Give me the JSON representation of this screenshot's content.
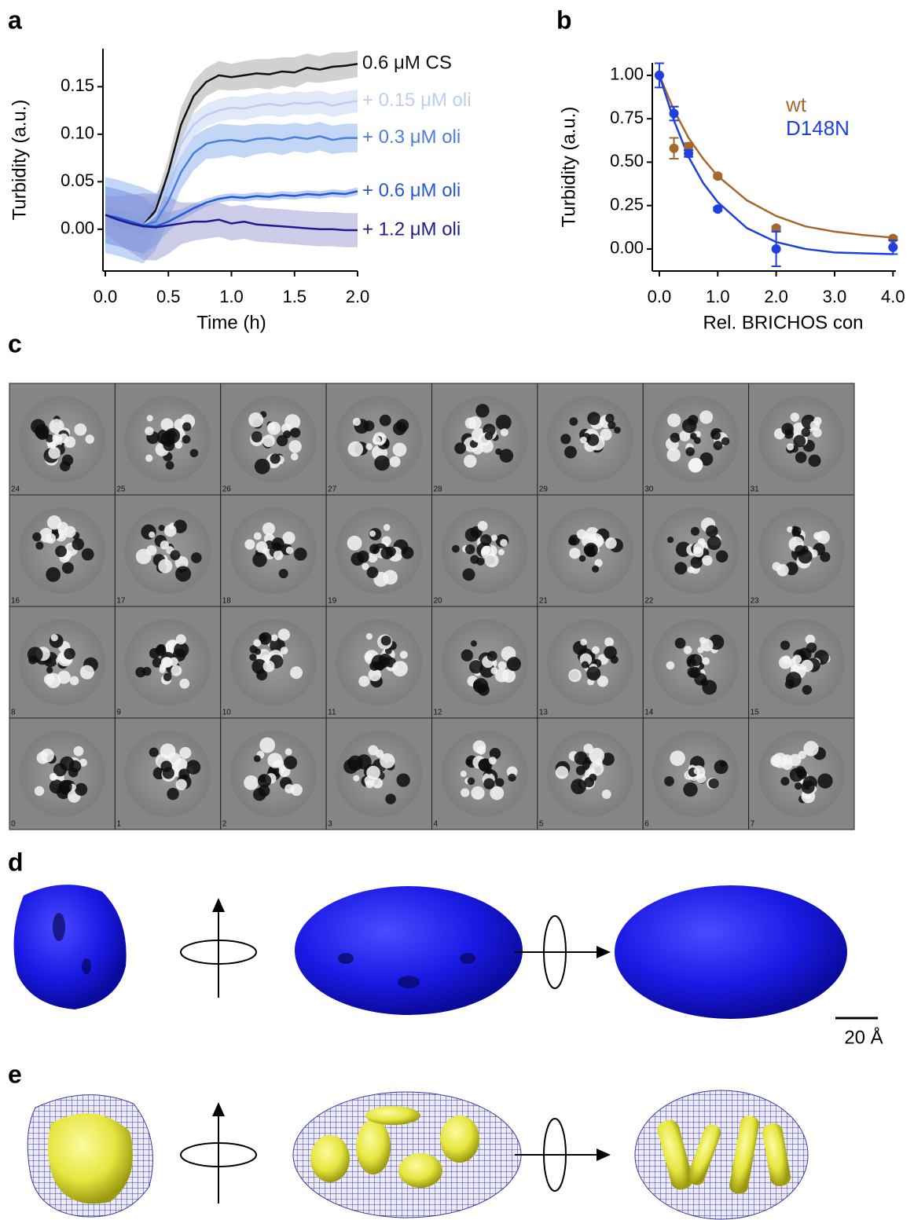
{
  "panel_labels": [
    "a",
    "b",
    "c",
    "d",
    "e"
  ],
  "chart_data": [
    {
      "type": "line",
      "x_label": "Time (h)",
      "y_label": "Turbidity (a.u.)",
      "x": [
        0,
        0.1,
        0.2,
        0.3,
        0.4,
        0.5,
        0.6,
        0.7,
        0.8,
        0.9,
        1.0,
        1.1,
        1.2,
        1.3,
        1.4,
        1.5,
        1.6,
        1.7,
        1.8,
        1.9,
        2.0
      ],
      "xlim": [
        0,
        2
      ],
      "ylim": [
        -0.044,
        0.19
      ],
      "xticks": [
        {
          "value": 0,
          "label": "0.0"
        },
        {
          "value": 0.5,
          "label": "0.5"
        },
        {
          "value": 1,
          "label": "1.0"
        },
        {
          "value": 1.5,
          "label": "1.5"
        },
        {
          "value": 2,
          "label": "2.0"
        }
      ],
      "yticks": [
        {
          "value": 0,
          "label": "0.00"
        },
        {
          "value": 0.05,
          "label": "0.05"
        },
        {
          "value": 0.1,
          "label": "0.10"
        },
        {
          "value": 0.15,
          "label": "0.15"
        }
      ],
      "series": [
        {
          "name": "0.6 μM CS",
          "color": "#111111",
          "band_color": "#9a9a9a",
          "values": [
            0.015,
            0.012,
            0.008,
            0.004,
            0.02,
            0.06,
            0.11,
            0.14,
            0.155,
            0.162,
            0.16,
            0.162,
            0.164,
            0.163,
            0.166,
            0.165,
            0.17,
            0.168,
            0.171,
            0.172,
            0.174
          ],
          "error": [
            0.01,
            0.01,
            0.01,
            0.01,
            0.012,
            0.015,
            0.018,
            0.016,
            0.015,
            0.015,
            0.014,
            0.015,
            0.015,
            0.016,
            0.015,
            0.016,
            0.015,
            0.014,
            0.015,
            0.014,
            0.014
          ]
        },
        {
          "name": "+ 0.15 μM oli",
          "color": "#bccdf0",
          "band_color": "#bccdf0",
          "values": [
            0.015,
            0.012,
            0.008,
            0.004,
            0.015,
            0.05,
            0.09,
            0.11,
            0.12,
            0.125,
            0.128,
            0.127,
            0.13,
            0.132,
            0.13,
            0.133,
            0.132,
            0.134,
            0.13,
            0.133,
            0.135
          ],
          "error": [
            0.03,
            0.03,
            0.03,
            0.03,
            0.02,
            0.015,
            0.012,
            0.012,
            0.012,
            0.012,
            0.012,
            0.012,
            0.012,
            0.012,
            0.012,
            0.012,
            0.012,
            0.012,
            0.012,
            0.012,
            0.012
          ]
        },
        {
          "name": "+ 0.3 μM oli",
          "color": "#4a7fe0",
          "band_color": "#7ba3ec",
          "values": [
            0.015,
            0.012,
            0.008,
            0.004,
            0.008,
            0.03,
            0.06,
            0.08,
            0.09,
            0.093,
            0.094,
            0.092,
            0.095,
            0.096,
            0.094,
            0.097,
            0.095,
            0.098,
            0.094,
            0.096,
            0.096
          ],
          "error": [
            0.04,
            0.04,
            0.04,
            0.04,
            0.03,
            0.02,
            0.018,
            0.018,
            0.016,
            0.018,
            0.016,
            0.017,
            0.016,
            0.015,
            0.016,
            0.015,
            0.015,
            0.015,
            0.015,
            0.015,
            0.015
          ]
        },
        {
          "name": "+ 0.6 μM oli",
          "color": "#2458d4",
          "band_color": "#6d95e6",
          "values": [
            0.015,
            0.012,
            0.008,
            0.004,
            0.003,
            0.008,
            0.015,
            0.022,
            0.028,
            0.032,
            0.034,
            0.033,
            0.035,
            0.034,
            0.036,
            0.035,
            0.037,
            0.036,
            0.038,
            0.037,
            0.04
          ],
          "error": [
            0.03,
            0.03,
            0.03,
            0.03,
            0.02,
            0.01,
            0.006,
            0.005,
            0.004,
            0.004,
            0.004,
            0.004,
            0.004,
            0.004,
            0.004,
            0.004,
            0.004,
            0.004,
            0.004,
            0.004,
            0.004
          ]
        },
        {
          "name": "+ 1.2 μM oli",
          "color": "#1c1c8e",
          "band_color": "#8f8fcf",
          "values": [
            0.015,
            0.01,
            0.006,
            0.003,
            0.002,
            0.004,
            0.006,
            0.008,
            0.008,
            0.01,
            0.006,
            0.008,
            0.005,
            0.004,
            0.003,
            0.002,
            0.001,
            0.0,
            0.0,
            -0.001,
            -0.001
          ],
          "error": [
            0.02,
            0.025,
            0.03,
            0.035,
            0.035,
            0.03,
            0.022,
            0.02,
            0.018,
            0.018,
            0.018,
            0.018,
            0.018,
            0.018,
            0.018,
            0.018,
            0.018,
            0.018,
            0.018,
            0.018,
            0.018
          ]
        }
      ]
    },
    {
      "type": "scatter",
      "x_label": "Rel. BRICHOS con",
      "y_label": "Turbidity (a.u.)",
      "x": [
        0,
        0.25,
        0.5,
        1,
        2,
        4
      ],
      "fit_x": [
        0,
        0.25,
        0.5,
        0.75,
        1,
        1.5,
        2,
        2.5,
        3,
        3.5,
        4
      ],
      "xlim": [
        -0.08,
        4.05
      ],
      "ylim": [
        -0.127,
        1.072
      ],
      "xticks": [
        {
          "value": 0,
          "label": "0.0"
        },
        {
          "value": 1,
          "label": "1.0"
        },
        {
          "value": 2,
          "label": "2.0"
        },
        {
          "value": 3,
          "label": "3.0"
        },
        {
          "value": 4,
          "label": "4.0"
        }
      ],
      "yticks": [
        {
          "value": 0,
          "label": "0.00"
        },
        {
          "value": 0.25,
          "label": "0.25"
        },
        {
          "value": 0.5,
          "label": "0.50"
        },
        {
          "value": 0.75,
          "label": "0.75"
        },
        {
          "value": 1,
          "label": "1.00"
        }
      ],
      "legend": "upper right",
      "series": [
        {
          "name": "wt",
          "color": "#a3692c",
          "values": [
            1.0,
            0.58,
            0.59,
            0.42,
            0.12,
            0.06
          ],
          "error": [
            0.0,
            0.06,
            0.02,
            0.01,
            0.01,
            0.01
          ],
          "fit": [
            1.0,
            0.8,
            0.64,
            0.52,
            0.42,
            0.28,
            0.19,
            0.13,
            0.1,
            0.08,
            0.065
          ]
        },
        {
          "name": "D148N",
          "color": "#1f3fe0",
          "values": [
            1.0,
            0.78,
            0.55,
            0.23,
            0.0,
            0.01
          ],
          "error": [
            0.07,
            0.04,
            0.02,
            0.01,
            0.1,
            0.04
          ],
          "fit": [
            1.0,
            0.74,
            0.53,
            0.38,
            0.27,
            0.12,
            0.04,
            0.0,
            -0.02,
            -0.025,
            -0.03
          ]
        }
      ]
    }
  ],
  "class_averages": [
    24,
    25,
    26,
    27,
    28,
    29,
    30,
    31,
    16,
    17,
    18,
    19,
    20,
    21,
    22,
    23,
    8,
    9,
    10,
    11,
    12,
    13,
    14,
    15,
    0,
    1,
    2,
    3,
    4,
    5,
    6,
    7
  ],
  "scale_bar": "20 Å"
}
